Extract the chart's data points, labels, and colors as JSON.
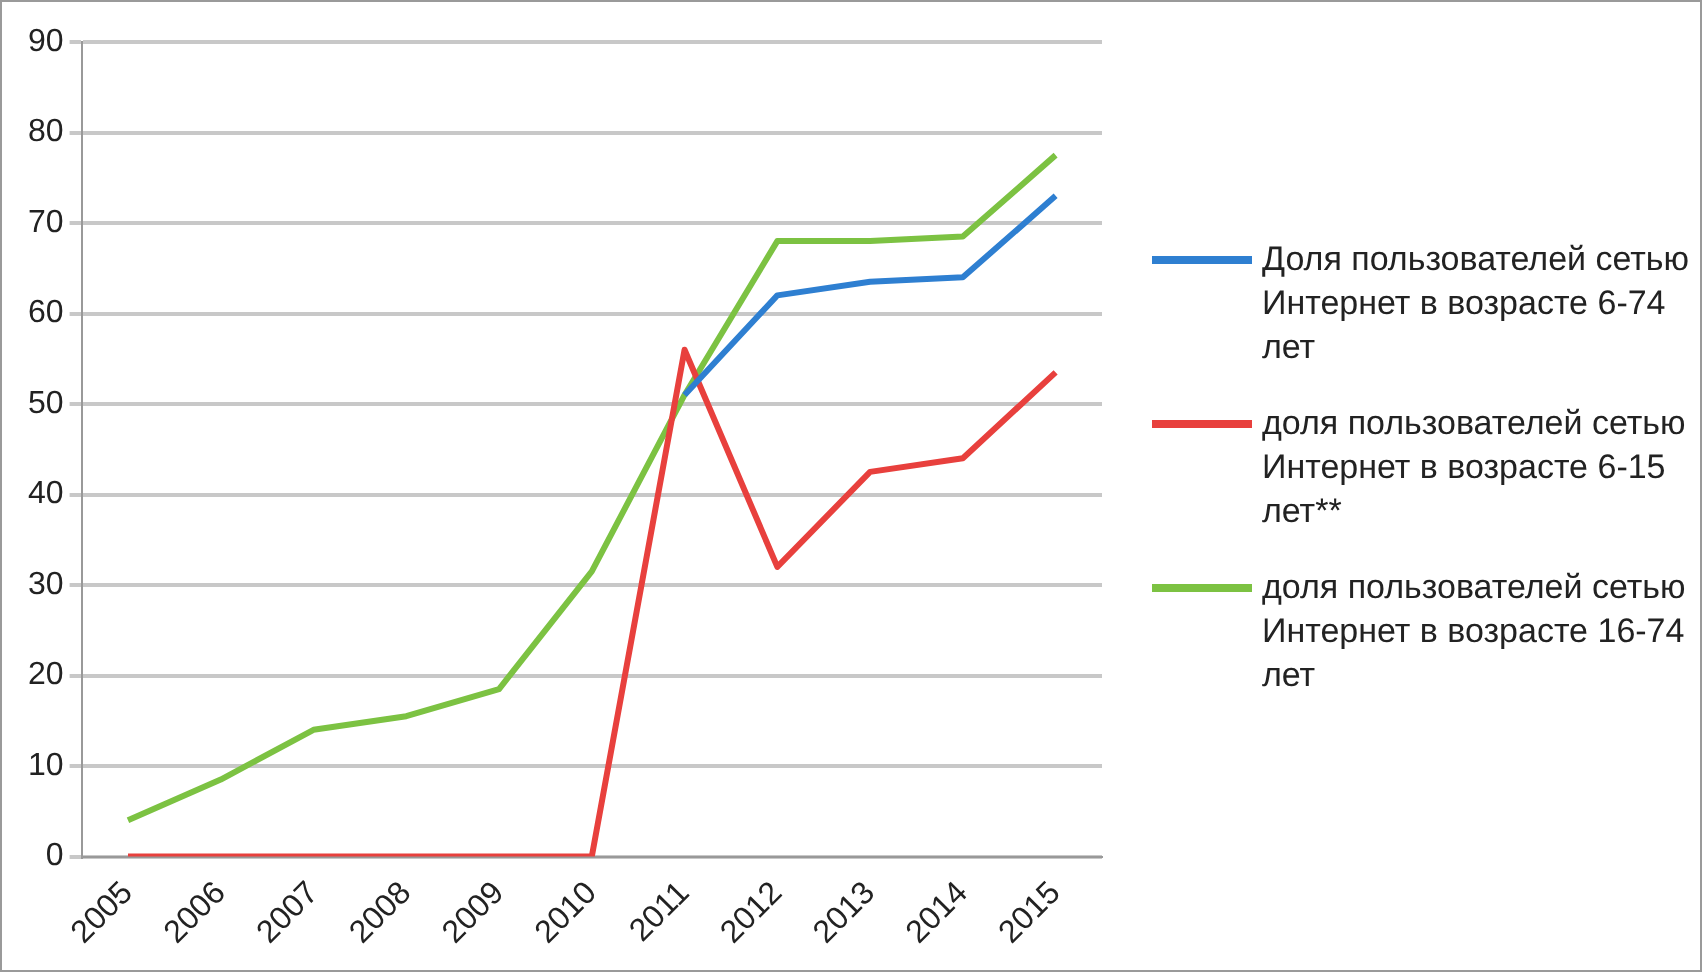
{
  "chart_data": {
    "type": "line",
    "categories": [
      "2005",
      "2006",
      "2007",
      "2008",
      "2009",
      "2010",
      "2011",
      "2012",
      "2013",
      "2014",
      "2015"
    ],
    "series": [
      {
        "name": "Доля пользователей сетью Интернет в возрасте 6-74 лет",
        "color": "#2e7fd1",
        "values": [
          null,
          null,
          null,
          null,
          null,
          null,
          51,
          62,
          63.5,
          64,
          73
        ]
      },
      {
        "name": "доля пользователей сетью Интернет в возрасте 6-15 лет**",
        "color": "#e8403d",
        "values": [
          0,
          0,
          0,
          0,
          0,
          0,
          56,
          32,
          42.5,
          44,
          53.5
        ]
      },
      {
        "name": "доля пользователей сетью Интернет в возрасте 16-74 лет",
        "color": "#7cc242",
        "values": [
          4,
          8.5,
          14,
          15.5,
          18.5,
          31.5,
          51,
          68,
          68,
          68.5,
          77.5
        ]
      }
    ],
    "ylim": [
      0,
      90
    ],
    "yticks": [
      0,
      10,
      20,
      30,
      40,
      50,
      60,
      70,
      80,
      90
    ],
    "grid": "y",
    "legend": "right",
    "marker": "none",
    "line_style": "solid"
  }
}
